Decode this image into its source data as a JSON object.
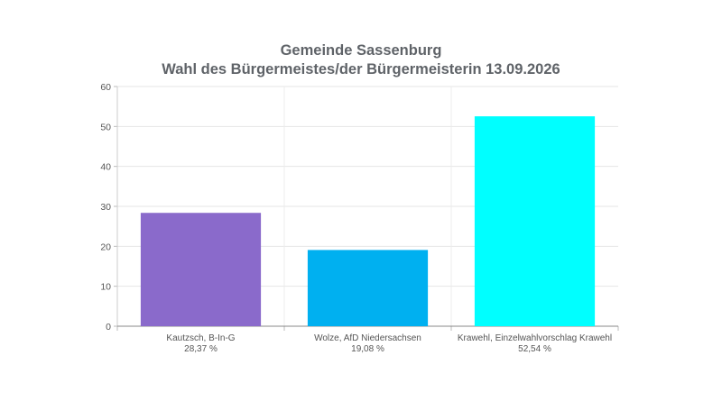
{
  "title_lines": [
    "Gemeinde Sassenburg",
    "Wahl des Bürgermeistes/der Bürgermeisterin 13.09.2026"
  ],
  "chart_data": {
    "type": "bar",
    "title": "Gemeinde Sassenburg\nWahl des Bürgermeistes/der Bürgermeisterin 13.09.2026",
    "categories": [
      "Kautzsch, B-In-G",
      "Wolze, AfD Niedersachsen",
      "Krawehl, Einzelwahlvorschlag Krawehl"
    ],
    "value_labels": [
      "28,37 %",
      "19,08 %",
      "52,54 %"
    ],
    "values": [
      28.37,
      19.08,
      52.54
    ],
    "colors": [
      "#8a6acb",
      "#00b0f0",
      "#00ffff"
    ],
    "ylim": [
      0,
      60
    ],
    "yticks": [
      0,
      10,
      20,
      30,
      40,
      50,
      60
    ],
    "grid": true,
    "legend": "none"
  }
}
